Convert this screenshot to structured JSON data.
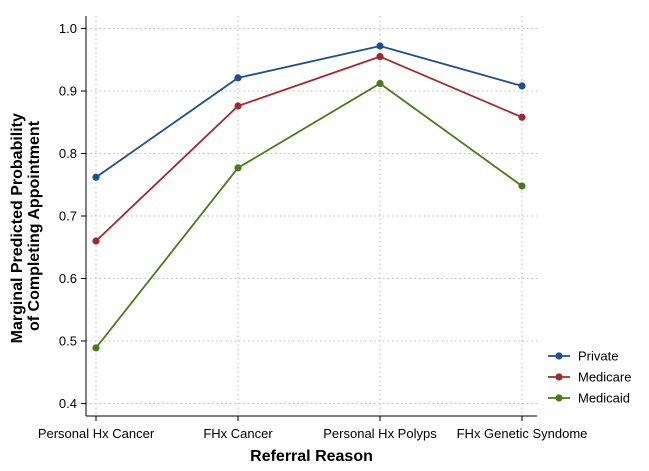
{
  "chart_data": {
    "type": "line",
    "title": "",
    "xlabel": "Referral Reason",
    "ylabel_lines": [
      "Marginal Predicted Probability",
      "of Completing Appointment"
    ],
    "categories": [
      "Personal Hx Cancer",
      "FHx Cancer",
      "Personal Hx Polyps",
      "FHx Genetic Syndome"
    ],
    "ylim": [
      0.38,
      1.02
    ],
    "yticks": [
      0.4,
      0.5,
      0.6,
      0.7,
      0.8,
      0.9,
      1.0
    ],
    "ytick_labels": [
      "0.4",
      "0.5",
      "0.6",
      "0.7",
      "0.8",
      "0.9",
      "1.0"
    ],
    "grid": true,
    "legend_position": "bottom-right",
    "series": [
      {
        "name": "Private",
        "color": "#1f4e8c",
        "values": [
          0.762,
          0.921,
          0.972,
          0.908
        ]
      },
      {
        "name": "Medicare",
        "color": "#a3282e",
        "values": [
          0.66,
          0.876,
          0.955,
          0.858
        ]
      },
      {
        "name": "Medicaid",
        "color": "#4a7a1c",
        "values": [
          0.489,
          0.777,
          0.912,
          0.748
        ]
      }
    ]
  }
}
